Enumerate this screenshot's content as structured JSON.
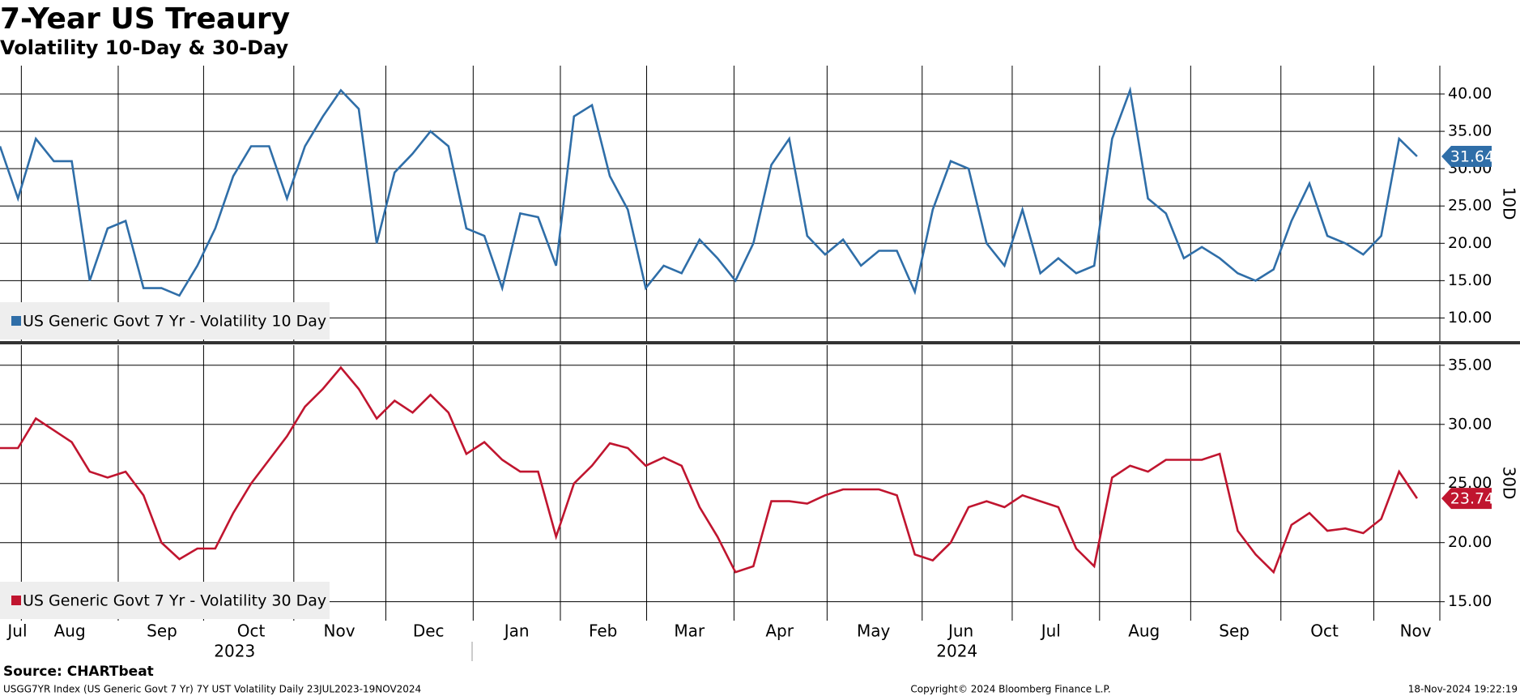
{
  "title": "7-Year US Treaury",
  "subtitle": "Volatility 10-Day & 30-Day",
  "source": "Source: CHARTbeat",
  "footer": {
    "left": "USGG7YR Index (US Generic Govt 7 Yr) 7Y UST Volatility  Daily 23JUL2023-19NOV2024",
    "center": "Copyright© 2024 Bloomberg Finance L.P.",
    "right": "18-Nov-2024 19:22:19"
  },
  "x_axis": {
    "xlim": [
      0,
      80.27
    ],
    "xgrid": [
      1.19,
      6.59,
      11.35,
      16.38,
      21.51,
      26.38,
      31.24,
      36.05,
      40.92,
      46.11,
      51.41,
      56.43,
      61.3,
      66.38,
      71.41,
      76.59
    ],
    "xticks": [
      {
        "value": 0.97,
        "label": "Jul"
      },
      {
        "value": 3.89,
        "label": "Aug"
      },
      {
        "value": 9.03,
        "label": "Sep"
      },
      {
        "value": 14.0,
        "label": "Oct"
      },
      {
        "value": 18.92,
        "label": "Nov"
      },
      {
        "value": 23.89,
        "label": "Dec"
      },
      {
        "value": 28.81,
        "label": "Jan"
      },
      {
        "value": 33.62,
        "label": "Feb"
      },
      {
        "value": 38.43,
        "label": "Mar"
      },
      {
        "value": 43.46,
        "label": "Apr"
      },
      {
        "value": 48.7,
        "label": "May"
      },
      {
        "value": 53.57,
        "label": "Jun"
      },
      {
        "value": 58.59,
        "label": "Jul"
      },
      {
        "value": 63.78,
        "label": "Aug"
      },
      {
        "value": 68.81,
        "label": "Sep"
      },
      {
        "value": 73.84,
        "label": "Oct"
      },
      {
        "value": 78.92,
        "label": "Nov"
      }
    ],
    "years": [
      {
        "value": 13.08,
        "label": "2023"
      },
      {
        "value": 53.35,
        "label": "2024"
      }
    ],
    "year_divider": 26.32
  },
  "chart_data": [
    {
      "type": "line",
      "y_axis_label": "10D",
      "ylim": [
        6.9,
        43.8
      ],
      "grid": true,
      "yticks": [
        {
          "value": 10,
          "label": "10.00"
        },
        {
          "value": 15,
          "label": "15.00"
        },
        {
          "value": 20,
          "label": "20.00"
        },
        {
          "value": 25,
          "label": "25.00"
        },
        {
          "value": 30,
          "label": "30.00"
        },
        {
          "value": 35,
          "label": "35.00"
        },
        {
          "value": 40,
          "label": "40.00"
        }
      ],
      "series": [
        {
          "name": "US Generic Govt 7 Yr - Volatility 10 Day",
          "color": "#2f6ea8",
          "values": [
            33,
            26,
            34,
            31,
            31,
            15,
            22,
            23,
            14,
            14,
            13,
            17,
            22,
            29,
            33,
            33,
            26,
            33,
            37,
            40.5,
            38,
            20,
            29.5,
            32,
            35,
            33,
            22,
            21,
            14,
            24,
            23.5,
            17,
            37,
            38.5,
            29,
            24.5,
            14,
            17,
            16,
            20.5,
            18,
            15,
            20,
            30.5,
            34,
            21,
            18.5,
            20.5,
            17,
            19,
            19,
            13.5,
            24.5,
            31,
            30,
            20,
            17,
            24.5,
            16,
            18,
            16,
            17,
            34,
            40.5,
            26,
            24,
            18,
            19.5,
            18,
            16,
            15,
            16.5,
            23,
            28,
            21,
            20,
            18.5,
            21,
            34,
            31.64
          ]
        }
      ]
    },
    {
      "type": "line",
      "y_axis_label": "30D",
      "ylim": [
        13.4,
        36.7
      ],
      "grid": true,
      "yticks": [
        {
          "value": 15,
          "label": "15.00"
        },
        {
          "value": 20,
          "label": "20.00"
        },
        {
          "value": 25,
          "label": "25.00"
        },
        {
          "value": 30,
          "label": "30.00"
        },
        {
          "value": 35,
          "label": "35.00"
        }
      ],
      "series": [
        {
          "name": "US Generic Govt 7 Yr - Volatility 30 Day",
          "color": "#c0152f",
          "values": [
            28,
            28,
            30.5,
            29.5,
            28.5,
            26,
            25.5,
            26,
            24,
            20,
            18.6,
            19.5,
            19.5,
            22.5,
            25,
            27,
            29,
            31.5,
            33,
            34.8,
            33,
            30.5,
            32,
            31,
            32.5,
            31,
            27.5,
            28.5,
            27,
            26,
            26,
            20.5,
            25,
            26.5,
            28.4,
            28,
            26.5,
            27.2,
            26.5,
            23,
            20.5,
            17.5,
            18,
            23.5,
            23.5,
            23.3,
            24,
            24.5,
            24.5,
            24.5,
            24,
            19,
            18.5,
            20,
            23,
            23.5,
            23,
            24,
            23.5,
            23,
            19.5,
            18,
            25.5,
            26.5,
            26,
            27,
            27,
            27,
            27.5,
            21,
            19,
            17.5,
            21.5,
            22.5,
            21,
            21.2,
            20.8,
            22,
            26,
            23.74
          ]
        }
      ]
    }
  ]
}
